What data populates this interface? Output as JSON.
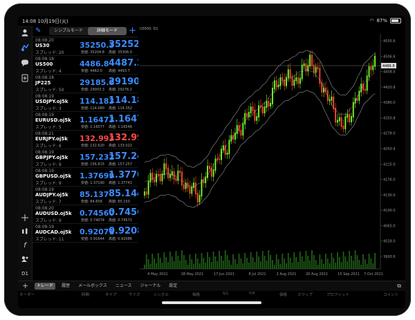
{
  "status": {
    "time": "14:08",
    "date": "10月19日(火)",
    "battery": "87%",
    "battery_level": 0.87
  },
  "toolbar_top": [
    "user-icon",
    "quotes-icon",
    "chat-icon",
    "new-order-icon"
  ],
  "toolbar_bottom": {
    "crosshair": "+",
    "indicators": "indicator-icon",
    "function": "f",
    "objects": "objects-icon",
    "timeframe": "D1"
  },
  "quotes_header": {
    "simple_mode": "シンプルモード",
    "detailed_mode": "詳細モード",
    "add": "+"
  },
  "quotes": [
    {
      "time": "08:08:20",
      "symbol": "US30",
      "spread": "スプレッド: 20",
      "bid": "35250.3",
      "ask": "35252.3",
      "low": "安値: 35204.8",
      "high": "高値: 35306.0",
      "color": "blue"
    },
    {
      "time": "08:08:18",
      "symbol": "US500",
      "spread": "スプレッド: 4",
      "bid": "4486.8",
      "ask": "4487.2",
      "low": "安値: 4482.0",
      "high": "高値: 4493.7",
      "color": "blue"
    },
    {
      "time": "08:08:18",
      "symbol": "JP225",
      "spread": "スプレッド: 50",
      "bid": "29185.0",
      "ask": "29190.0",
      "low": "安値: 29003.3",
      "high": "高値: 29276.2",
      "color": "blue"
    },
    {
      "time": "08:08:19",
      "symbol": "USDJPY.oj5k",
      "spread": "スプレッド: 3",
      "bid": "114.183",
      "ask": "114.186",
      "low": "安値: 114.080",
      "high": "高値: 114.352",
      "color": "blue"
    },
    {
      "time": "08:08:19",
      "symbol": "EURUSD.oj5k",
      "spread": "スプレッド: 5",
      "bid": "1.16473",
      "ask": "1.16478",
      "low": "安値: 1.16077",
      "high": "高値: 1.16548",
      "color": "blue"
    },
    {
      "time": "08:08:21",
      "symbol": "EURJPY.oj5k",
      "spread": "スプレッド: 6",
      "bid": "132.993",
      "ask": "132.999",
      "low": "安値: 132.620",
      "high": "高値: 133.022",
      "color": "red"
    },
    {
      "time": "08:08:19",
      "symbol": "GBPJPY.oj5k",
      "spread": "スプレッド: 9",
      "bid": "157.232",
      "ask": "157.241",
      "low": "安値: 156.815",
      "high": "高値: 157.257",
      "color": "blue"
    },
    {
      "time": "08:08:19",
      "symbol": "GBPUSD.oj5k",
      "spread": "スプレッド: 9",
      "bid": "1.37699",
      "ask": "1.37708",
      "low": "安値: 1.37190",
      "high": "高値: 1.37743",
      "color": "blue"
    },
    {
      "time": "08:08:19",
      "symbol": "AUDJPY.oj5k",
      "spread": "スプレッド: 7",
      "bid": "85.137",
      "ask": "85.144",
      "low": "安値: 84.658",
      "high": "高値: 85.150",
      "color": "blue"
    },
    {
      "time": "08:08:20",
      "symbol": "AUDUSD.oj5k",
      "spread": "スプレッド: 9",
      "bid": "0.74560",
      "ask": "0.74569",
      "low": "安値: 0.74074",
      "high": "高値: 0.74571",
      "color": "blue"
    },
    {
      "time": "08:08:19",
      "symbol": "AUDCAD.oj5k",
      "spread": "スプレッド: 11",
      "bid": "0.92071",
      "ask": "0.92082",
      "low": "安値: 0.91644",
      "high": "高値: 0.92086",
      "color": "blue"
    }
  ],
  "chart": {
    "symbol_label": "US500, D1",
    "price_labels": [
      "4535.6",
      "4506.6",
      "4458.0",
      "4420.8",
      "4380.0",
      "4350.8",
      "4278.0",
      "4250.9",
      "4215.0",
      "4176.0",
      "4130.0",
      "4100.0",
      "4065.0",
      "4028.0",
      "3993.6"
    ],
    "date_labels": [
      "4 May 2021",
      "28 May 2021",
      "17 Jun 2021",
      "8 Jul 2021",
      "2 Aug 2021",
      "20 Aug 2021",
      "15 Sep 2021",
      "7 Oct 2021"
    ],
    "current_price_box": "4486.8",
    "up_color": "#7cff2a",
    "down_color": "#ff4a2a",
    "band_color": "#c8c8c8",
    "volume_color": "#1f5c16"
  },
  "bottom_tabs": [
    "トレード",
    "履歴",
    "メールボックス",
    "ニュース",
    "ジャーナル",
    "設定"
  ],
  "bottom_plus": "+",
  "columns": [
    "オーダー",
    "時間",
    "タイプ",
    "サイズ",
    "シンボル",
    "価格",
    "S/L",
    "T/P",
    "価格",
    "スワップ",
    "プロフィット",
    "コメント"
  ]
}
